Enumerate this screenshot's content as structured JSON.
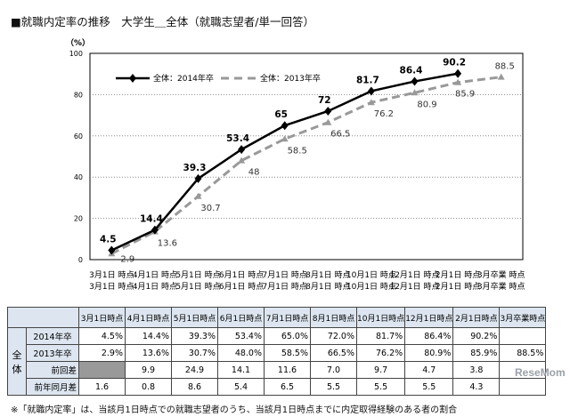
{
  "title": "■就職内定率の推移　大学生＿全体（就職志望者/単一回答）",
  "unit": "（%）",
  "chart_data": {
    "type": "line",
    "categories": [
      "3月1日\n時点",
      "4月1日\n時点",
      "5月1日\n時点",
      "6月1日\n時点",
      "7月1日\n時点",
      "8月1日\n時点",
      "10月1日\n時点",
      "12月1日\n時点",
      "2月1日\n時点",
      "3月卒業\n時点"
    ],
    "ylim": [
      0,
      100
    ],
    "yticks": [
      0,
      20,
      40,
      60,
      80,
      100
    ],
    "grid": true,
    "legend_position": "top-left",
    "series": [
      {
        "name": "全体：2014年卒",
        "values": [
          4.5,
          14.4,
          39.3,
          53.4,
          65.0,
          72.0,
          81.7,
          86.4,
          90.2,
          null
        ],
        "color": "#000000",
        "style": "solid-diamond"
      },
      {
        "name": "全体：2013年卒",
        "values": [
          2.9,
          13.6,
          30.7,
          48.0,
          58.5,
          66.5,
          76.2,
          80.9,
          85.9,
          88.5
        ],
        "color": "#999999",
        "style": "dashed-triangle"
      }
    ]
  },
  "table": {
    "headers": [
      "3月1日時点",
      "4月1日時点",
      "5月1日時点",
      "6月1日時点",
      "7月1日時点",
      "8月1日時点",
      "10月1日時点",
      "12月1日時点",
      "2月1日時点",
      "3月卒業時点"
    ],
    "group": "全体",
    "rows": [
      {
        "label": "2014年卒",
        "cells": [
          "4.5%",
          "14.4%",
          "39.3%",
          "53.4%",
          "65.0%",
          "72.0%",
          "81.7%",
          "86.4%",
          "90.2%",
          ""
        ]
      },
      {
        "label": "2013年卒",
        "cells": [
          "2.9%",
          "13.6%",
          "30.7%",
          "48.0%",
          "58.5%",
          "66.5%",
          "76.2%",
          "80.9%",
          "85.9%",
          "88.5%"
        ]
      },
      {
        "label": "前回差",
        "cells": [
          "",
          "9.9",
          "24.9",
          "14.1",
          "11.6",
          "7.0",
          "9.7",
          "4.7",
          "3.8",
          ""
        ]
      },
      {
        "label": "前年同月差",
        "cells": [
          "1.6",
          "0.8",
          "8.6",
          "5.4",
          "6.5",
          "5.5",
          "5.5",
          "5.5",
          "4.3",
          ""
        ]
      }
    ]
  },
  "footnote": "※「就職内定率」は、当該月1日時点での就職志望者のうち、当該月1日時点までに内定取得経験のある者の割合",
  "watermark": "ReseMom"
}
